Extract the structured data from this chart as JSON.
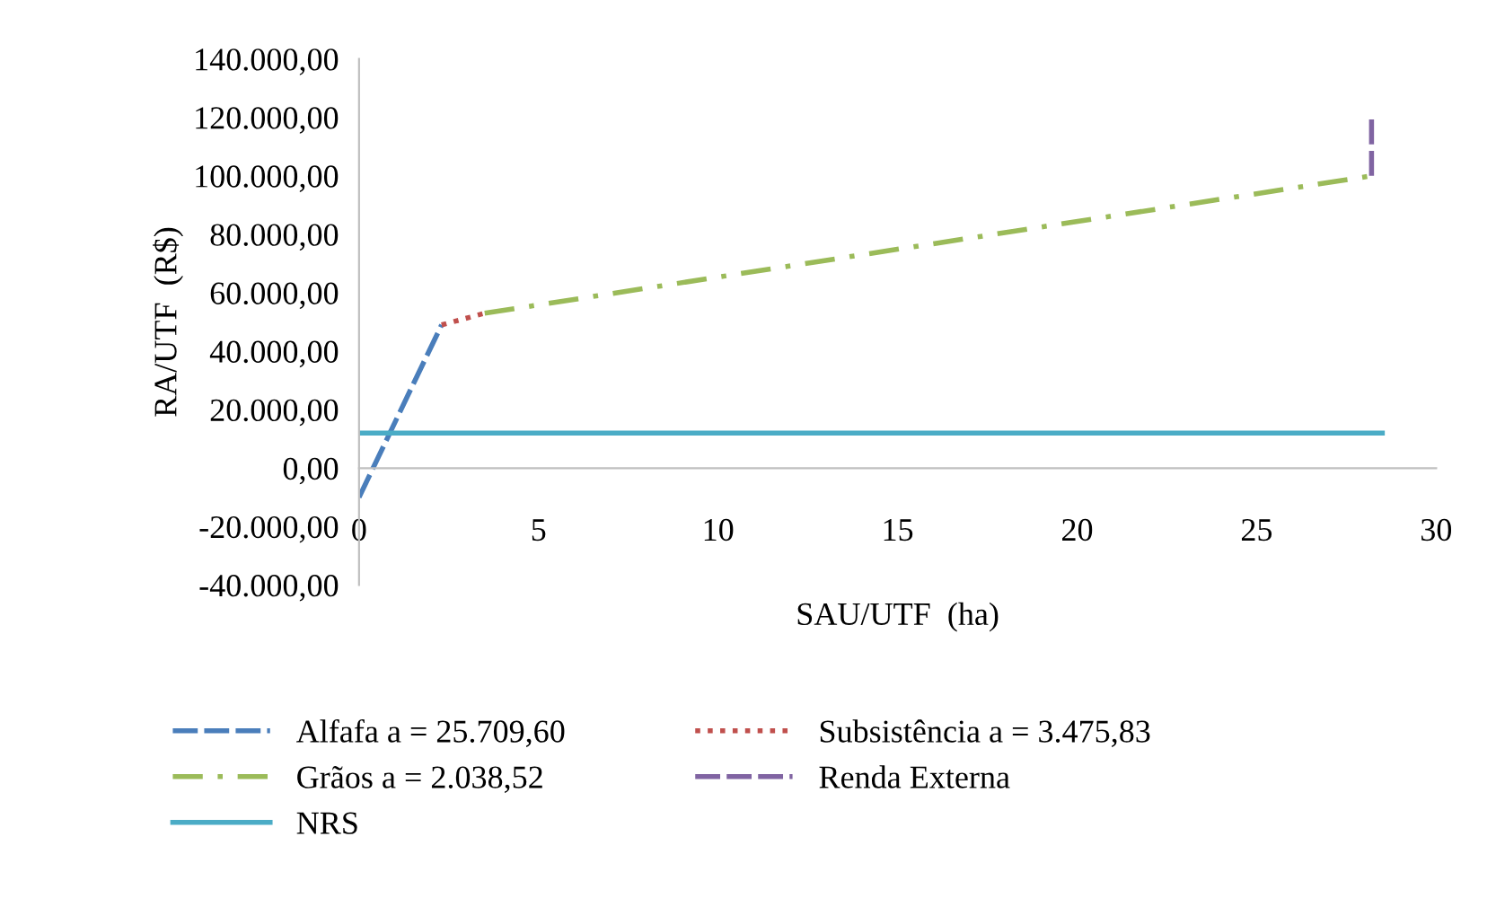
{
  "chart_data": {
    "type": "line",
    "xlabel": "SAU/UTF  (ha)",
    "ylabel": "RA/UTF  (R$)",
    "xlim": [
      0,
      30
    ],
    "xticks": [
      0,
      5,
      10,
      15,
      20,
      25,
      30
    ],
    "ylim": [
      -40000,
      140000
    ],
    "yticks": [
      {
        "value": -40000,
        "label": "-40.000,00"
      },
      {
        "value": -20000,
        "label": "-20.000,00"
      },
      {
        "value": 0,
        "label": "0,00"
      },
      {
        "value": 20000,
        "label": "20.000,00"
      },
      {
        "value": 40000,
        "label": "40.000,00"
      },
      {
        "value": 60000,
        "label": "60.000,00"
      },
      {
        "value": 80000,
        "label": "80.000,00"
      },
      {
        "value": 100000,
        "label": "100.000,00"
      },
      {
        "value": 120000,
        "label": "120.000,00"
      },
      {
        "value": 140000,
        "label": "140.000,00"
      }
    ],
    "grid": false,
    "legend": "bottom",
    "marker": "none",
    "series": [
      {
        "name": "Alfafa a = 25.709,60",
        "color": "#4a7ebb",
        "line_style": "dashed",
        "x": [
          0,
          2.3
        ],
        "values": [
          -10000,
          49000
        ]
      },
      {
        "name": "Subsistência a = 3.475,83",
        "color": "#c0504d",
        "line_style": "dotted",
        "x": [
          2.3,
          3.5
        ],
        "values": [
          49000,
          53000
        ]
      },
      {
        "name": "Grãos a = 2.038,52",
        "color": "#9bbb59",
        "line_style": "dashdot",
        "x": [
          3.5,
          28.2
        ],
        "values": [
          53000,
          100000
        ]
      },
      {
        "name": "Renda Externa",
        "color": "#8064a2",
        "line_style": "dashed",
        "x": [
          28.2,
          28.2
        ],
        "values": [
          100000,
          120000
        ]
      },
      {
        "name": "NRS",
        "color": "#4bacc6",
        "line_style": "solid",
        "x": [
          0,
          28.5
        ],
        "values": [
          12000,
          12000
        ]
      }
    ]
  }
}
